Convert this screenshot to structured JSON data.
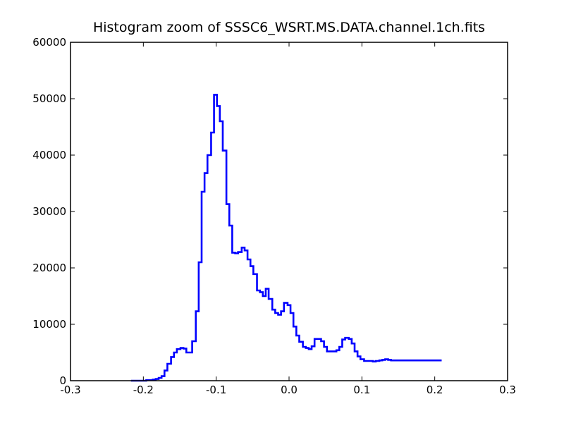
{
  "chart_data": {
    "type": "line",
    "style": "step-histogram",
    "title": "Histogram zoom of SSSC6_WSRT.MS.DATA.channel.1ch.fits",
    "xlabel": "",
    "ylabel": "",
    "xlim": [
      -0.3,
      0.3
    ],
    "ylim": [
      0,
      60000
    ],
    "x_ticks": [
      -0.3,
      -0.2,
      -0.1,
      0.0,
      0.1,
      0.2,
      0.3
    ],
    "x_tick_labels": [
      "-0.3",
      "-0.2",
      "-0.1",
      "0.0",
      "0.1",
      "0.2",
      "0.3"
    ],
    "y_ticks": [
      0,
      10000,
      20000,
      30000,
      40000,
      50000,
      60000
    ],
    "y_tick_labels": [
      "0",
      "10000",
      "20000",
      "30000",
      "40000",
      "50000",
      "60000"
    ],
    "grid": false,
    "line_color": "#0000ff",
    "series": [
      {
        "x": [
          -0.217,
          -0.213,
          -0.209,
          -0.204,
          -0.2,
          -0.196,
          -0.191,
          -0.187,
          -0.183,
          -0.179,
          -0.175,
          -0.171,
          -0.167,
          -0.162,
          -0.158,
          -0.154,
          -0.149,
          -0.145,
          -0.141,
          -0.137,
          -0.133,
          -0.128,
          -0.124,
          -0.12,
          -0.116,
          -0.112,
          -0.107,
          -0.103,
          -0.099,
          -0.095,
          -0.091,
          -0.086,
          -0.082,
          -0.078,
          -0.074,
          -0.07,
          -0.065,
          -0.061,
          -0.057,
          -0.053,
          -0.049,
          -0.044,
          -0.04,
          -0.036,
          -0.032,
          -0.028,
          -0.023,
          -0.019,
          -0.015,
          -0.011,
          -0.007,
          -0.002,
          0.002,
          0.006,
          0.01,
          0.014,
          0.019,
          0.023,
          0.027,
          0.031,
          0.035,
          0.04,
          0.044,
          0.048,
          0.052,
          0.056,
          0.061,
          0.065,
          0.069,
          0.073,
          0.077,
          0.082,
          0.086,
          0.09,
          0.094,
          0.098,
          0.103,
          0.107,
          0.111,
          0.115,
          0.119,
          0.124,
          0.128,
          0.132,
          0.136,
          0.14,
          0.145,
          0.149,
          0.153,
          0.157,
          0.161,
          0.166,
          0.17,
          0.174,
          0.178,
          0.182,
          0.187,
          0.191,
          0.195,
          0.199,
          0.203,
          0.208
        ],
        "values": [
          0,
          0,
          0,
          0,
          0,
          100,
          100,
          200,
          300,
          500,
          800,
          1800,
          3000,
          4200,
          5000,
          5600,
          5800,
          5700,
          5000,
          5000,
          7000,
          12300,
          21000,
          33500,
          36800,
          40000,
          44000,
          50700,
          48700,
          46000,
          40800,
          31300,
          27500,
          22700,
          22600,
          22800,
          23600,
          23100,
          21500,
          20300,
          18900,
          16000,
          15700,
          15000,
          16300,
          14500,
          12600,
          12000,
          11700,
          12300,
          13800,
          13400,
          12000,
          9600,
          8000,
          6900,
          6000,
          5800,
          5600,
          6100,
          7400,
          7400,
          7000,
          6000,
          5200,
          5200,
          5200,
          5400,
          6000,
          7300,
          7600,
          7400,
          6600,
          5200,
          4300,
          3800,
          3500,
          3500,
          3500,
          3400,
          3500,
          3600,
          3700,
          3800,
          3700,
          3600,
          3600,
          3600,
          3600,
          3600,
          3600,
          3600,
          3600,
          3600,
          3600,
          3600,
          3600,
          3600,
          3600,
          3600,
          3600,
          3600
        ],
        "bin_width": 0.0042,
        "end_x": 0.2095
      }
    ]
  }
}
